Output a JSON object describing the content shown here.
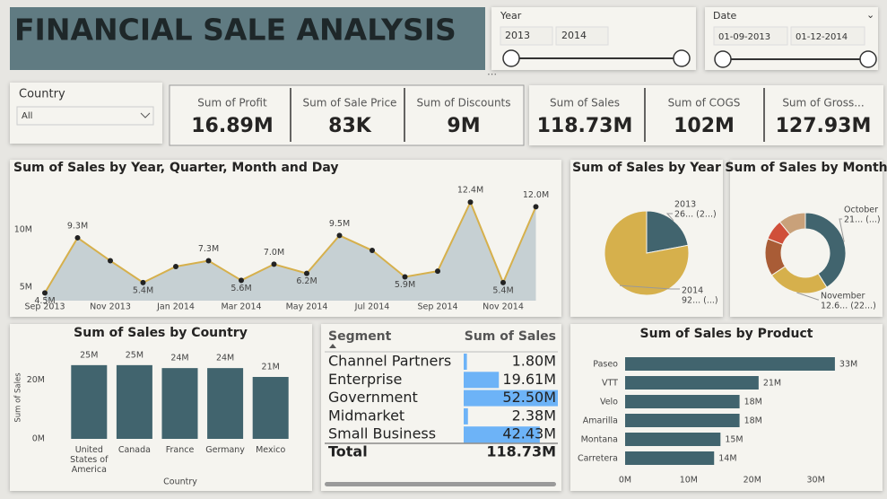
{
  "header": {
    "title": "FINANCIAL SALE ANALYSIS"
  },
  "slicers": {
    "year": {
      "label": "Year",
      "from": "2013",
      "to": "2014"
    },
    "date": {
      "label": "Date",
      "from": "01-09-2013",
      "to": "01-12-2014"
    },
    "country": {
      "label": "Country",
      "value": "All"
    }
  },
  "cards": [
    {
      "label": "Sum of Profit",
      "value": "16.89M"
    },
    {
      "label": "Sum of Sale Price",
      "value": "83K"
    },
    {
      "label": "Sum of Discounts",
      "value": "9M"
    },
    {
      "label": "Sum of Sales",
      "value": "118.73M"
    },
    {
      "label": "Sum of COGS",
      "value": "102M"
    },
    {
      "label": "Sum of Gross...",
      "value": "127.93M"
    }
  ],
  "chart_data": [
    {
      "type": "line",
      "title": "Sum of Sales by Year, Quarter, Month and Day",
      "categories": [
        "Sep 2013",
        null,
        "Nov 2013",
        null,
        "Jan 2014",
        null,
        "Mar 2014",
        null,
        "May 2014",
        null,
        "Jul 2014",
        null,
        "Sep 2014",
        null,
        "Nov 2014",
        null
      ],
      "values": [
        4500000,
        9300000,
        7300000,
        5400000,
        6800000,
        7300000,
        5600000,
        7000000,
        6200000,
        9500000,
        8200000,
        5900000,
        6400000,
        12400000,
        5400000,
        12000000
      ],
      "value_labels": [
        "4.5M",
        "9.3M",
        null,
        "5.4M",
        null,
        "7.3M",
        "5.6M",
        "7.0M",
        "6.2M",
        "9.5M",
        null,
        "5.9M",
        null,
        "12.4M",
        "5.4M",
        "12.0M"
      ],
      "color": "#d6b04c",
      "area_color": "#c6d0d3",
      "ylim": [
        3830000,
        13980000
      ],
      "yticks": [
        {
          "value": 5000000,
          "label": "5M"
        },
        {
          "value": 10000000,
          "label": "10M"
        }
      ]
    },
    {
      "type": "pie",
      "title": "Sum of Sales by Year",
      "categories": [
        "2013",
        "2014"
      ],
      "values": [
        26000000,
        92000000
      ],
      "value_labels": [
        "26... (2...)",
        "92... (...)"
      ],
      "colors": [
        "#41646e",
        "#d6b04c"
      ]
    },
    {
      "type": "donut",
      "title": "Sum of Sales by Month",
      "categories": [
        "October",
        "November",
        null,
        null,
        null
      ],
      "values": [
        21000000,
        12600000,
        7700000,
        4200000,
        5600000
      ],
      "value_labels": [
        "21... (...)",
        "12.6... (22...)",
        null,
        null,
        null
      ],
      "colors": [
        "#41646e",
        "#d6b04c",
        "#a95c36",
        "#d04f3a",
        "#c9a17a"
      ]
    },
    {
      "type": "bar",
      "title": "Sum of Sales by Country",
      "x_label": "Country",
      "y_label": "Sum of Sales",
      "categories": [
        "United States of America",
        "Canada",
        "France",
        "Germany",
        "Mexico"
      ],
      "values": [
        25000000,
        25000000,
        24000000,
        24000000,
        21000000
      ],
      "value_labels": [
        "25M",
        "25M",
        "24M",
        "24M",
        "21M"
      ],
      "color": "#41646e",
      "ylim": [
        0,
        28000000
      ],
      "yticks": [
        {
          "value": 0,
          "label": "0M"
        },
        {
          "value": 20000000,
          "label": "20M"
        }
      ]
    },
    {
      "type": "table",
      "columns": [
        "Segment",
        "Sum of Sales"
      ],
      "categories": [
        "Channel Partners",
        "Enterprise",
        "Government",
        "Midmarket",
        "Small Business"
      ],
      "values": [
        1800000,
        19610000,
        52500000,
        2380000,
        42430000
      ],
      "value_labels": [
        "1.80M",
        "19.61M",
        "52.50M",
        "2.38M",
        "42.43M"
      ],
      "total": {
        "label": "Total",
        "value_label": "118.73M"
      },
      "color": "#6db3f7"
    },
    {
      "type": "bar",
      "orientation": "horizontal",
      "title": "Sum of Sales by Product",
      "categories": [
        "Paseo",
        "VTT",
        "Velo",
        "Amarilla",
        "Montana",
        "Carretera"
      ],
      "values": [
        33000000,
        21000000,
        18000000,
        18000000,
        15000000,
        14000000
      ],
      "value_labels": [
        "33M",
        "21M",
        "18M",
        "18M",
        "15M",
        "14M"
      ],
      "color": "#41646e",
      "xlim": [
        0,
        34000000
      ],
      "xticks": [
        {
          "value": 0,
          "label": "0M"
        },
        {
          "value": 10000000,
          "label": "10M"
        },
        {
          "value": 20000000,
          "label": "20M"
        },
        {
          "value": 30000000,
          "label": "30M"
        }
      ]
    }
  ]
}
